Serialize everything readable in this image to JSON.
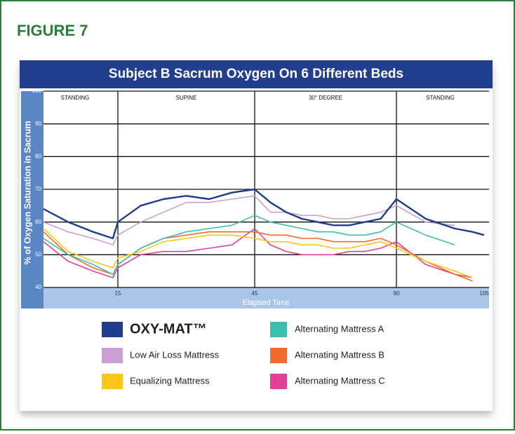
{
  "figure_label": "FIGURE 7",
  "chart_data": {
    "type": "line",
    "title": "Subject B Sacrum Oxygen On 6 Different Beds",
    "y_label": "% of Oxygen Saturation in Sacrum",
    "x_label": "Elapsed Time",
    "xlim": [
      0,
      105
    ],
    "xticks": [
      15,
      45,
      90,
      105
    ],
    "ylim": [
      40,
      100
    ],
    "yticks": [
      40,
      50,
      60,
      70,
      80,
      90,
      100
    ],
    "grid": true,
    "phases": [
      {
        "label": "STANDING",
        "x": [
          0,
          15
        ]
      },
      {
        "label": "SUPINE",
        "x": [
          15,
          45
        ]
      },
      {
        "label": "30° DEGREE",
        "x": [
          45,
          90
        ]
      },
      {
        "label": "STANDING",
        "x": [
          90,
          105
        ]
      }
    ],
    "x": [
      0,
      5,
      10,
      14,
      15,
      20,
      25,
      30,
      35,
      40,
      45,
      50,
      55,
      60,
      65,
      70,
      75,
      80,
      85,
      90,
      95,
      100,
      103,
      105
    ],
    "series": [
      {
        "name": "OXY-MAT™",
        "color": "#1f3d8c",
        "values": [
          64,
          60,
          57,
          55,
          60,
          65,
          67,
          68,
          67,
          69,
          70,
          66,
          63,
          61,
          60,
          59,
          59,
          60,
          61,
          67,
          61,
          58,
          57,
          56
        ]
      },
      {
        "name": "Low Air Loss Mattress",
        "color": "#c9a0d6",
        "values": [
          60,
          57,
          55,
          53,
          56,
          60,
          63,
          66,
          66,
          67,
          68,
          63,
          63,
          62,
          62,
          61,
          61,
          62,
          63,
          65,
          60,
          59,
          null,
          null
        ]
      },
      {
        "name": "Equalizing Mattress",
        "color": "#ffc61a",
        "values": [
          58,
          51,
          48,
          46,
          49,
          51,
          54,
          55,
          56,
          56,
          55,
          54,
          54,
          53,
          53,
          52,
          52,
          53,
          54,
          52,
          48,
          45,
          43,
          null
        ]
      },
      {
        "name": "Alternating Mattress A",
        "color": "#3dbdb0",
        "values": [
          55,
          50,
          47,
          44,
          47,
          52,
          55,
          57,
          58,
          59,
          62,
          60,
          59,
          58,
          57,
          57,
          56,
          56,
          57,
          60,
          56,
          53,
          null,
          null
        ]
      },
      {
        "name": "Alternating Mattress B",
        "color": "#f26a2a",
        "values": [
          57,
          50,
          46,
          44,
          47,
          52,
          55,
          56,
          57,
          57,
          57,
          56,
          56,
          55,
          55,
          54,
          54,
          54,
          55,
          53,
          48,
          44,
          42,
          null
        ]
      },
      {
        "name": "Alternating Mattress C",
        "color": "#e0409a",
        "values": [
          54,
          48,
          45,
          43,
          46,
          50,
          51,
          51,
          52,
          53,
          58,
          53,
          51,
          50,
          50,
          50,
          51,
          51,
          52,
          54,
          47,
          44,
          43,
          null
        ]
      }
    ]
  }
}
